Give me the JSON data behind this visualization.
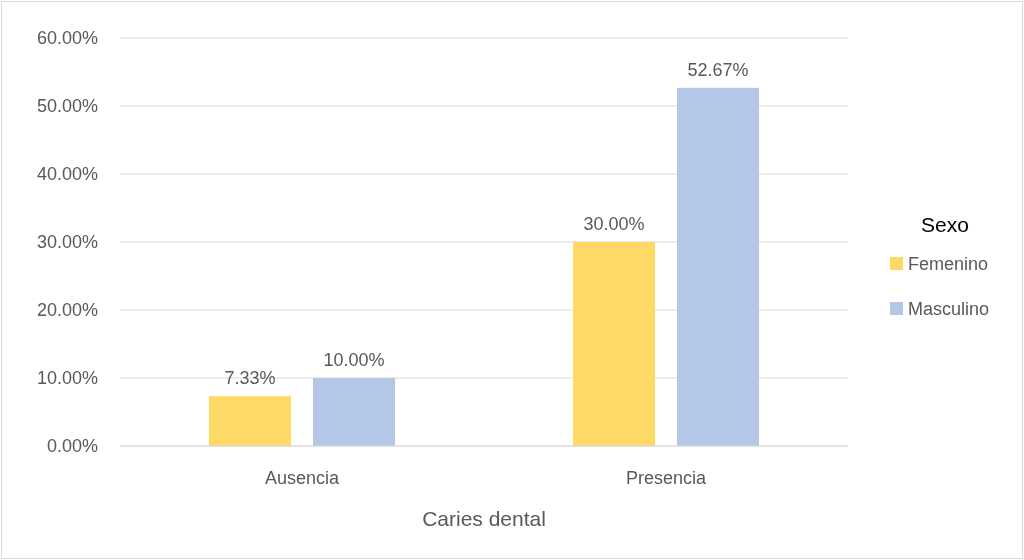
{
  "chart_data": {
    "type": "bar",
    "xlabel": "Caries dental",
    "legend_title": "Sexo",
    "categories": [
      "Ausencia",
      "Presencia"
    ],
    "series": [
      {
        "name": "Femenino",
        "color": "#ffd966",
        "values": [
          7.33,
          30.0
        ],
        "value_labels": [
          "7.33%",
          "30.00%"
        ]
      },
      {
        "name": "Masculino",
        "color": "#b4c7e7",
        "values": [
          10.0,
          52.67
        ],
        "value_labels": [
          "10.00%",
          "52.67%"
        ]
      }
    ],
    "ylim": [
      0,
      60
    ],
    "yticks": [
      {
        "value": 0,
        "label": "0.00%"
      },
      {
        "value": 10,
        "label": "10.00%"
      },
      {
        "value": 20,
        "label": "20.00%"
      },
      {
        "value": 30,
        "label": "30.00%"
      },
      {
        "value": 40,
        "label": "40.00%"
      },
      {
        "value": 50,
        "label": "50.00%"
      },
      {
        "value": 60,
        "label": "60.00%"
      }
    ],
    "grid": "y",
    "legend": "right"
  }
}
